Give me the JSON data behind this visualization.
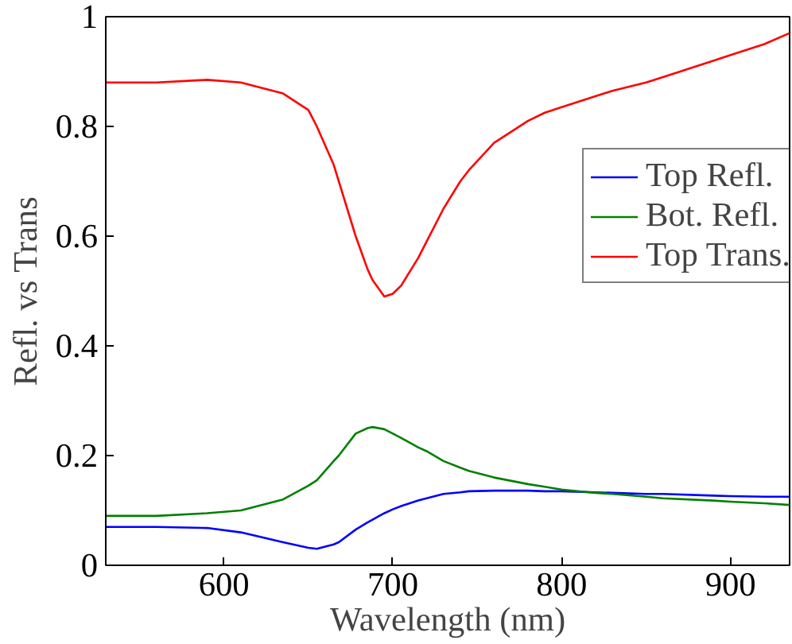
{
  "chart_data": {
    "type": "line",
    "xlabel": "Wavelength (nm)",
    "ylabel": "Refl. vs Trans",
    "x": [
      530,
      560,
      590,
      610,
      635,
      650,
      655,
      665,
      668,
      678,
      685,
      688,
      695,
      700,
      705,
      715,
      720,
      730,
      740,
      745,
      760,
      780,
      790,
      800,
      820,
      830,
      850,
      860,
      890,
      900,
      920,
      935
    ],
    "series": [
      {
        "name": "Top Refl.",
        "color": "#0000ff",
        "values": [
          0.07,
          0.07,
          0.068,
          0.06,
          0.042,
          0.032,
          0.03,
          0.038,
          0.042,
          0.065,
          0.078,
          0.083,
          0.095,
          0.102,
          0.108,
          0.118,
          0.122,
          0.13,
          0.133,
          0.135,
          0.136,
          0.136,
          0.135,
          0.135,
          0.133,
          0.132,
          0.13,
          0.13,
          0.127,
          0.126,
          0.125,
          0.125
        ]
      },
      {
        "name": "Bot. Refl.",
        "color": "#008000",
        "values": [
          0.09,
          0.09,
          0.095,
          0.1,
          0.12,
          0.145,
          0.155,
          0.19,
          0.2,
          0.24,
          0.25,
          0.252,
          0.248,
          0.24,
          0.232,
          0.215,
          0.208,
          0.19,
          0.178,
          0.172,
          0.16,
          0.148,
          0.143,
          0.138,
          0.132,
          0.13,
          0.125,
          0.122,
          0.118,
          0.116,
          0.113,
          0.11
        ]
      },
      {
        "name": "Top Trans.",
        "color": "#ff0000",
        "values": [
          0.88,
          0.88,
          0.885,
          0.88,
          0.86,
          0.83,
          0.8,
          0.73,
          0.7,
          0.6,
          0.54,
          0.52,
          0.49,
          0.495,
          0.51,
          0.56,
          0.59,
          0.65,
          0.7,
          0.72,
          0.77,
          0.81,
          0.825,
          0.835,
          0.855,
          0.865,
          0.88,
          0.89,
          0.92,
          0.93,
          0.95,
          0.97
        ]
      }
    ],
    "xlim": [
      530,
      935
    ],
    "ylim": [
      0,
      1
    ],
    "xticks": [
      600,
      700,
      800,
      900
    ],
    "yticks": [
      0,
      0.2,
      0.4,
      0.6,
      0.8,
      1
    ],
    "grid": false,
    "legend": "right"
  }
}
